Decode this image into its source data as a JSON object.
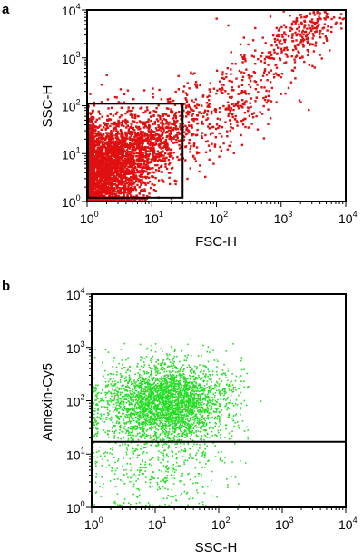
{
  "chart_data": [
    {
      "type": "scatter",
      "panel_label": "a",
      "xlabel": "FSC-H",
      "ylabel": "SSC-H",
      "xscale": "log",
      "yscale": "log",
      "xlim": [
        1,
        10000
      ],
      "ylim": [
        1,
        10000
      ],
      "tick_labels": [
        {
          "base": "10",
          "exp": "0"
        },
        {
          "base": "10",
          "exp": "1"
        },
        {
          "base": "10",
          "exp": "2"
        },
        {
          "base": "10",
          "exp": "3"
        },
        {
          "base": "10",
          "exp": "4"
        }
      ],
      "point_color": "#e01010",
      "gate": {
        "shape": "rectangle",
        "x_range": [
          1,
          30
        ],
        "y_range": [
          1.2,
          110
        ]
      },
      "series": [
        {
          "clusters": [
            {
              "x": 1.8,
              "y": 5,
              "sx": 0.45,
              "sy": 0.5,
              "n": 2600,
              "tilt": 0.5
            },
            {
              "x": 1.3,
              "y": 3.5,
              "sx": 0.25,
              "sy": 0.55,
              "n": 900,
              "tilt": 0
            },
            {
              "x": 12,
              "y": 20,
              "sx": 0.4,
              "sy": 0.35,
              "n": 500,
              "tilt": 0.8
            },
            {
              "x": 150,
              "y": 80,
              "sx": 0.55,
              "sy": 0.45,
              "n": 260,
              "tilt": 0.9
            },
            {
              "x": 2500,
              "y": 3500,
              "sx": 0.35,
              "sy": 0.3,
              "n": 260,
              "tilt": 0.8
            },
            {
              "x": 400,
              "y": 600,
              "sx": 0.5,
              "sy": 0.5,
              "n": 110,
              "tilt": 0.9
            }
          ]
        }
      ]
    },
    {
      "type": "scatter",
      "panel_label": "b",
      "xlabel": "SSC-H",
      "ylabel": "Annexin-Cy5",
      "xscale": "log",
      "yscale": "log",
      "xlim": [
        1,
        10000
      ],
      "ylim": [
        1,
        10000
      ],
      "tick_labels": [
        {
          "base": "10",
          "exp": "0"
        },
        {
          "base": "10",
          "exp": "1"
        },
        {
          "base": "10",
          "exp": "2"
        },
        {
          "base": "10",
          "exp": "3"
        },
        {
          "base": "10",
          "exp": "4"
        }
      ],
      "point_color": "#22dd22",
      "gate": {
        "shape": "horizontal-line",
        "y": 17
      },
      "series": [
        {
          "clusters": [
            {
              "x": 15,
              "y": 90,
              "sx": 0.5,
              "sy": 0.38,
              "n": 3200,
              "xmax": 300
            },
            {
              "x": 12,
              "y": 6,
              "sx": 0.55,
              "sy": 0.45,
              "n": 420,
              "xmax": 600
            }
          ]
        }
      ]
    }
  ]
}
